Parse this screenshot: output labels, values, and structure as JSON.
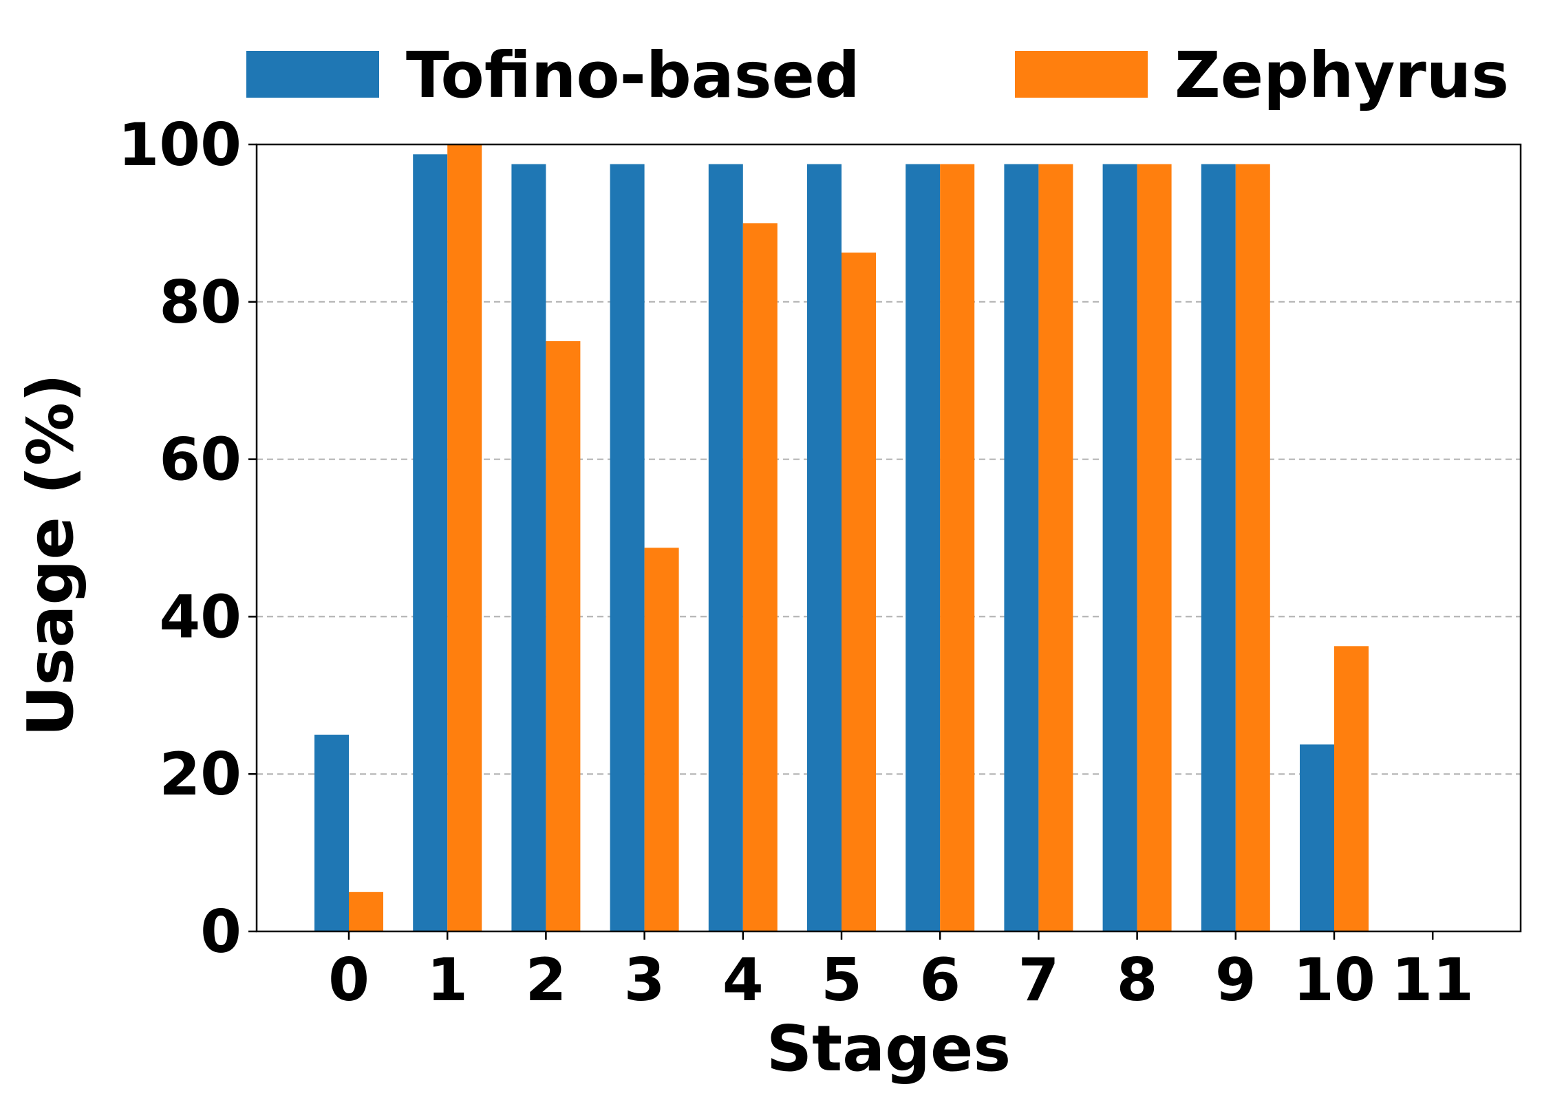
{
  "chart_data": {
    "type": "bar",
    "categories": [
      "0",
      "1",
      "2",
      "3",
      "4",
      "5",
      "6",
      "7",
      "8",
      "9",
      "10",
      "11"
    ],
    "series": [
      {
        "name": "Tofino-based",
        "color": "#1f77b4",
        "values": [
          25.0,
          98.75,
          97.5,
          97.5,
          97.5,
          97.5,
          97.5,
          97.5,
          97.5,
          97.5,
          23.75,
          0
        ]
      },
      {
        "name": "Zephyrus",
        "color": "#ff7f0e",
        "values": [
          5.0,
          100.0,
          75.0,
          48.75,
          90.0,
          86.25,
          97.5,
          97.5,
          97.5,
          97.5,
          36.25,
          0
        ]
      }
    ],
    "title": "",
    "xlabel": "Stages",
    "ylabel": "Usage (%)",
    "ylim": [
      0,
      100
    ],
    "yticks": [
      "0",
      "20",
      "40",
      "60",
      "80",
      "100"
    ],
    "grid": "horizontal dashed",
    "legend_position": "top"
  }
}
